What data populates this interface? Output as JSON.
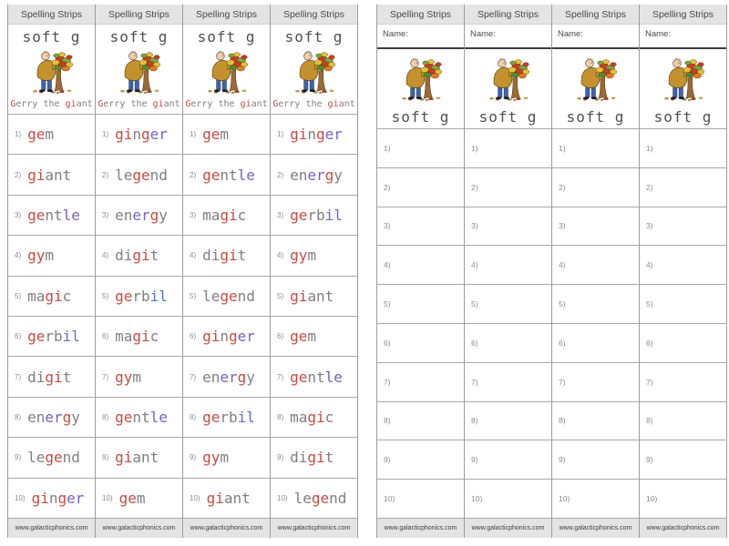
{
  "document_title": "Spelling Strips - soft g",
  "header_label": "Spelling Strips",
  "footer_label": "www.galacticphonics.com",
  "strip_title": "soft g",
  "name_label": "Name:",
  "illustration": "giant-holding-autumn-tree",
  "caption": {
    "text": "Gerry the giant",
    "segments": [
      [
        "G",
        "r"
      ],
      [
        "erry the ",
        "g"
      ],
      [
        "gi",
        "r"
      ],
      [
        "ant",
        "g"
      ]
    ]
  },
  "row_numbers": [
    "1)",
    "2)",
    "3)",
    "4)",
    "5)",
    "6)",
    "7)",
    "8)",
    "9)",
    "10)"
  ],
  "palette": {
    "r": "#c94a42",
    "p": "#7a5ec2",
    "b": "#5c6fc9",
    "g": "#7f7f7f",
    "header_bg": "#e4e4e4",
    "header_text": "#494949",
    "grid_line": "#a8a8a8",
    "column_line": "#9c9c9c",
    "number_text": "#8b8b8b",
    "footer_text": "#3d3d3d",
    "name_text": "#4a4a4a",
    "title_text": "#4f4f4f"
  },
  "words": {
    "gem": {
      "text": "gem",
      "segments": [
        [
          "ge",
          "r"
        ],
        [
          "m",
          "g"
        ]
      ]
    },
    "giant": {
      "text": "giant",
      "segments": [
        [
          "gi",
          "r"
        ],
        [
          "ant",
          "g"
        ]
      ]
    },
    "gentle": {
      "text": "gentle",
      "segments": [
        [
          "ge",
          "r"
        ],
        [
          "nt",
          "g"
        ],
        [
          "le",
          "p"
        ]
      ]
    },
    "gym": {
      "text": "gym",
      "segments": [
        [
          "gy",
          "r"
        ],
        [
          "m",
          "g"
        ]
      ]
    },
    "magic": {
      "text": "magic",
      "segments": [
        [
          "ma",
          "g"
        ],
        [
          "gi",
          "r"
        ],
        [
          "c",
          "g"
        ]
      ]
    },
    "gerbil": {
      "text": "gerbil",
      "segments": [
        [
          "ge",
          "r"
        ],
        [
          "rb",
          "g"
        ],
        [
          "il",
          "b"
        ]
      ]
    },
    "digit": {
      "text": "digit",
      "segments": [
        [
          "di",
          "g"
        ],
        [
          "gi",
          "r"
        ],
        [
          "t",
          "g"
        ]
      ]
    },
    "energy": {
      "text": "energy",
      "segments": [
        [
          "en",
          "g"
        ],
        [
          "er",
          "p"
        ],
        [
          "g",
          "r"
        ],
        [
          "y",
          "g"
        ]
      ]
    },
    "legend": {
      "text": "legend",
      "segments": [
        [
          "le",
          "g"
        ],
        [
          "ge",
          "r"
        ],
        [
          "nd",
          "g"
        ]
      ]
    },
    "ginger": {
      "text": "ginger",
      "segments": [
        [
          "gi",
          "r"
        ],
        [
          "n",
          "g"
        ],
        [
          "g",
          "r"
        ],
        [
          "er",
          "p"
        ]
      ]
    }
  },
  "left_page": {
    "columns": [
      [
        "gem",
        "giant",
        "gentle",
        "gym",
        "magic",
        "gerbil",
        "digit",
        "energy",
        "legend",
        "ginger"
      ],
      [
        "ginger",
        "legend",
        "energy",
        "digit",
        "gerbil",
        "magic",
        "gym",
        "gentle",
        "giant",
        "gem"
      ],
      [
        "gem",
        "gentle",
        "magic",
        "digit",
        "legend",
        "ginger",
        "energy",
        "gerbil",
        "gym",
        "giant"
      ],
      [
        "ginger",
        "energy",
        "gerbil",
        "gym",
        "giant",
        "gem",
        "gentle",
        "magic",
        "digit",
        "legend"
      ]
    ]
  },
  "right_page": {
    "column_count": 4,
    "rows_per_column": 10
  }
}
